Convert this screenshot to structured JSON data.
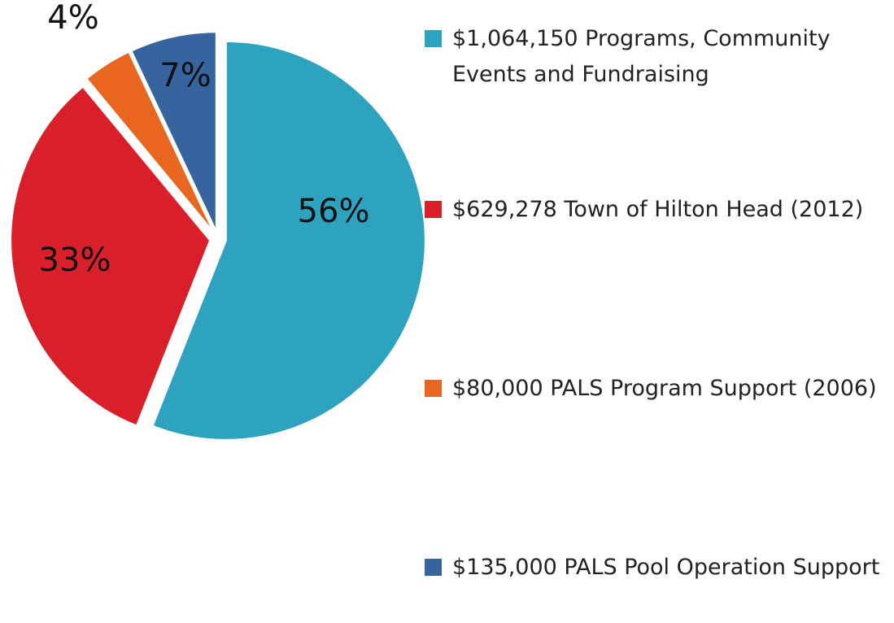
{
  "chart_data": {
    "type": "pie",
    "categories": [
      "$1,064,150 Programs, Community Events and Fundraising",
      "$629,278 Town of Hilton Head (2012)",
      "$80,000 PALS Program Support (2006)",
      "$135,000 PALS Pool Operation Support"
    ],
    "values": [
      56,
      33,
      4,
      7
    ],
    "value_labels": [
      "56%",
      "33%",
      "4%",
      "7%"
    ],
    "colors": [
      "#2ea3c0",
      "#d9202a",
      "#e96620",
      "#36649e"
    ],
    "legend": "right"
  }
}
